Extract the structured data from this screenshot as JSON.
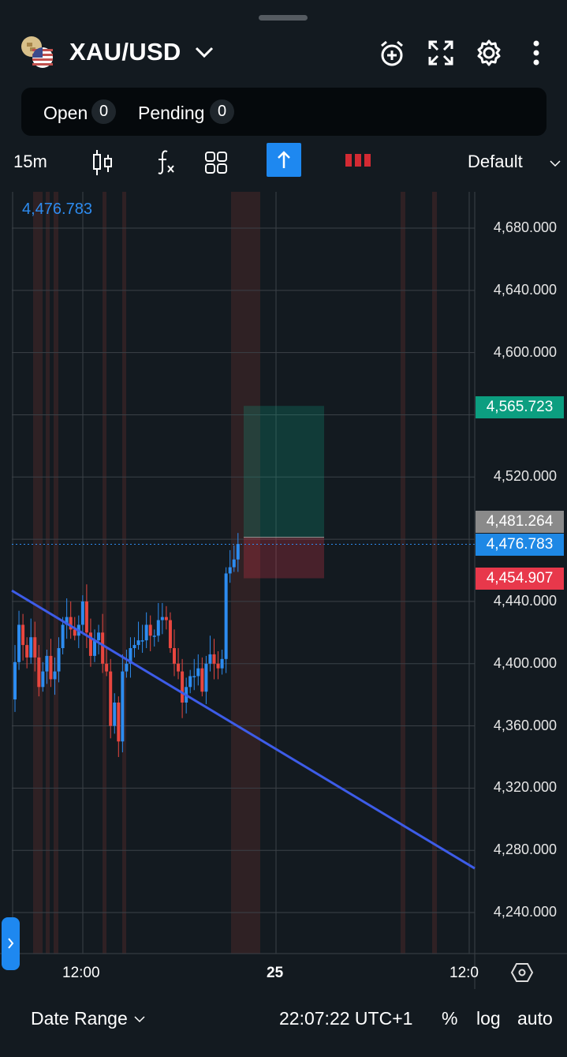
{
  "header": {
    "symbol": "XAU/USD",
    "icons": [
      "gold-usd-flag-icon",
      "chevron-down-icon",
      "alarm-add-icon",
      "fullscreen-icon",
      "gear-icon",
      "more-vertical-icon"
    ]
  },
  "positions": {
    "open_label": "Open",
    "open_count": "0",
    "pending_label": "Pending",
    "pending_count": "0"
  },
  "toolbar": {
    "timeframe": "15m",
    "template": "Default",
    "icons": [
      "candlestick-icon",
      "function-icon",
      "layout-grid-icon",
      "arrow-up-icon",
      "volume-bars-icon",
      "chevron-down-icon"
    ]
  },
  "colors": {
    "up": "#2d8cf0",
    "down": "#e8463f",
    "take_profit": "#0c9e80",
    "stop_loss": "#e8384b",
    "current": "#1e88e5",
    "entry": "#8a8a8a",
    "trendline": "#3d5ce8"
  },
  "chart_data": {
    "type": "candlestick",
    "crosshair_price": "4,476.783",
    "ylim": [
      4220,
      4700
    ],
    "y_ticks": [
      "4,680.000",
      "4,640.000",
      "4,600.000",
      "4,520.000",
      "4,440.000",
      "4,400.000",
      "4,360.000",
      "4,320.000",
      "4,280.000",
      "4,240.000"
    ],
    "y_tick_values": [
      4680,
      4640,
      4600,
      4520,
      4440,
      4400,
      4360,
      4320,
      4280,
      4240
    ],
    "x_ticks": [
      "12:00",
      "25",
      "12:0"
    ],
    "closes": [
      4377,
      4401,
      4425,
      4412,
      4404,
      4417,
      4404,
      4385,
      4395,
      4405,
      4390,
      4395,
      4410,
      4425,
      4430,
      4422,
      4418,
      4425,
      4440,
      4420,
      4405,
      4415,
      4420,
      4400,
      4395,
      4360,
      4375,
      4350,
      4395,
      4400,
      4410,
      4412,
      4415,
      4415,
      4425,
      4418,
      4418,
      4428,
      4430,
      4428,
      4410,
      4400,
      4395,
      4375,
      4385,
      4392,
      4392,
      4397,
      4382,
      4400,
      4406,
      4400,
      4397,
      4403,
      4458,
      4462,
      4467,
      4477
    ],
    "take_profit": {
      "value": 4565.723,
      "label": "4,565.723"
    },
    "entry": {
      "value": 4481.264,
      "label": "4,481.264"
    },
    "current": {
      "value": 4476.783,
      "label": "4,476.783"
    },
    "stop_loss": {
      "value": 4454.907,
      "label": "4,454.907"
    },
    "trendline": {
      "start": 4447,
      "end": 4268.4
    }
  },
  "footer": {
    "date_range": "Date Range",
    "time": "22:07:22 UTC+1",
    "percent": "%",
    "log": "log",
    "auto": "auto"
  }
}
